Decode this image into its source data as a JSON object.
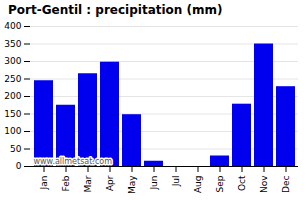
{
  "chart_data": {
    "type": "bar",
    "title": "Port-Gentil : precipitation (mm)",
    "categories": [
      "Jan",
      "Feb",
      "Mar",
      "Apr",
      "May",
      "Jun",
      "Jul",
      "Aug",
      "Sep",
      "Oct",
      "Nov",
      "Dec"
    ],
    "values": [
      245,
      175,
      265,
      298,
      148,
      15,
      0,
      0,
      30,
      178,
      350,
      228
    ],
    "color": "#0000EE",
    "ylim": [
      0,
      400
    ],
    "yticks": [
      0,
      50,
      100,
      150,
      200,
      250,
      300,
      350,
      400
    ],
    "grid": true,
    "annotations": [
      "www.allmetsat.com"
    ]
  }
}
